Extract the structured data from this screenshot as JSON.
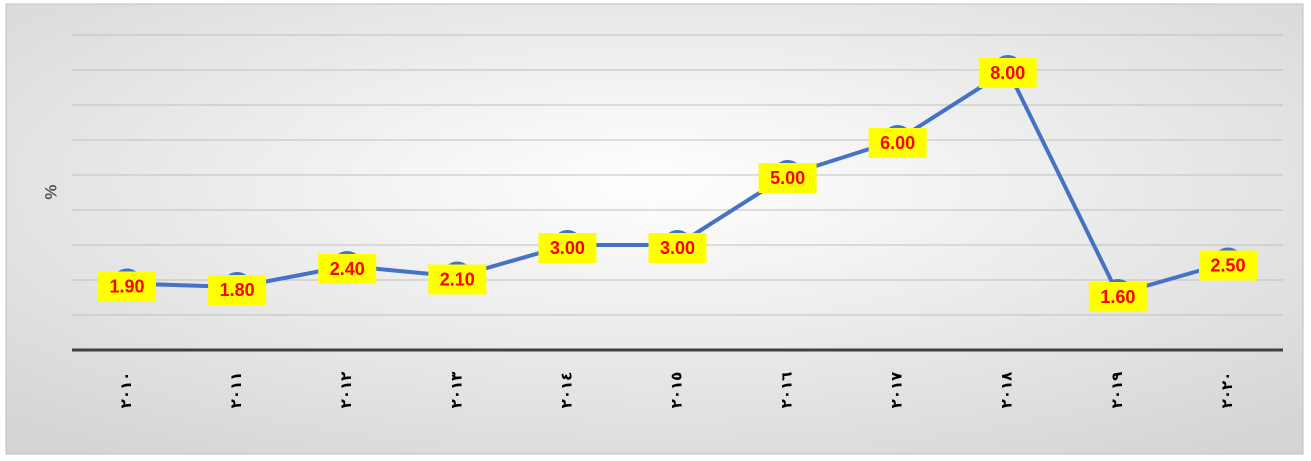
{
  "chart_data": {
    "type": "line",
    "ylabel": "%",
    "categories": [
      "٢٠١٠",
      "٢٠١١",
      "٢٠١٢",
      "٢٠١٣",
      "٢٠١٤",
      "٢٠١٥",
      "٢٠١٦",
      "٢٠١٧",
      "٢٠١٨",
      "٢٠١٩",
      "٢٠٢٠"
    ],
    "series": [
      {
        "name": "%",
        "color": "#4472c4",
        "values": [
          1.9,
          1.8,
          2.4,
          2.1,
          3,
          3,
          5,
          6,
          8,
          1.6,
          2.5
        ],
        "value_labels": [
          "1.90",
          "1.80",
          "2.40",
          "2.10",
          "3.00",
          "3.00",
          "5.00",
          "6.00",
          "8.00",
          "1.60",
          "2.50"
        ]
      }
    ],
    "ylim": [
      0,
      9
    ],
    "yticks": [
      0,
      1,
      2,
      3,
      4,
      5,
      6,
      7,
      8,
      9
    ],
    "grid": true,
    "label_box_color": "#ffff00",
    "label_text_color": "#ff0000"
  }
}
